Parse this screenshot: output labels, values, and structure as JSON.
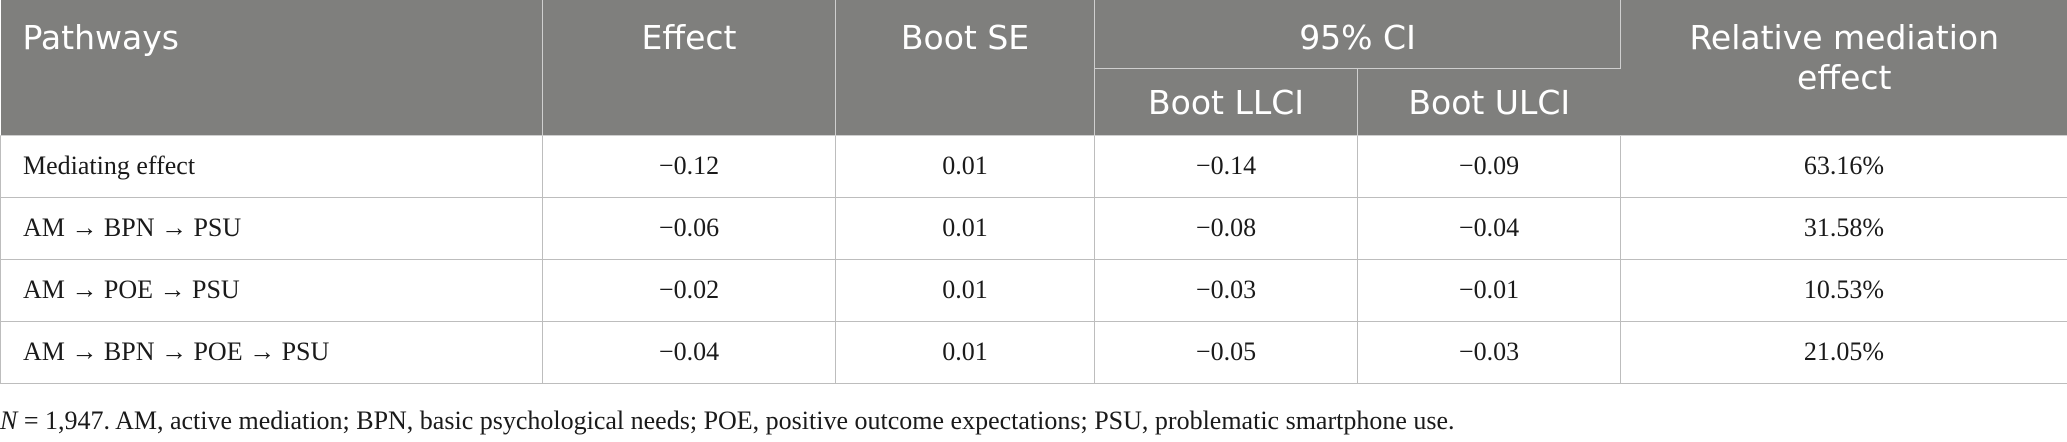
{
  "table": {
    "headers": {
      "pathways": "Pathways",
      "effect": "Effect",
      "boot_se": "Boot SE",
      "ci": "95% CI",
      "boot_llci": "Boot LLCI",
      "boot_ulci": "Boot ULCI",
      "relative_line1": "Relative mediation",
      "relative_line2": "effect"
    },
    "rows": [
      {
        "pathway": "Mediating effect",
        "effect": "−0.12",
        "boot_se": "0.01",
        "llci": "−0.14",
        "ulci": "−0.09",
        "relative": "63.16%"
      },
      {
        "pathway": "AM → BPN → PSU",
        "effect": "−0.06",
        "boot_se": "0.01",
        "llci": "−0.08",
        "ulci": "−0.04",
        "relative": "31.58%"
      },
      {
        "pathway": "AM → POE → PSU",
        "effect": "−0.02",
        "boot_se": "0.01",
        "llci": "−0.03",
        "ulci": "−0.01",
        "relative": "10.53%"
      },
      {
        "pathway": "AM → BPN → POE → PSU",
        "effect": "−0.04",
        "boot_se": "0.01",
        "llci": "−0.05",
        "ulci": "−0.03",
        "relative": "21.05%"
      }
    ]
  },
  "footnote": {
    "n_symbol": "N",
    "text": " = 1,947. AM, active mediation; BPN, basic psychological needs; POE, positive outcome expectations; PSU, problematic smartphone use."
  },
  "colors": {
    "header_bg": "#7f7f7d",
    "header_text": "#ffffff",
    "grid": "#bdbdbd"
  }
}
